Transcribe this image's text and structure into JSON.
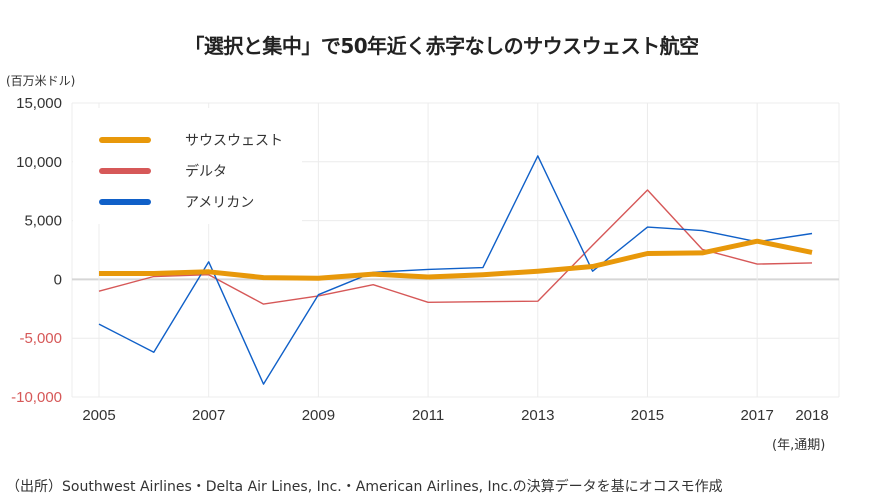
{
  "title": "「選択と集中」で50年近く赤字なしのサウスウェスト航空",
  "y_unit": "(百万米ドル)",
  "x_unit": "(年,通期)",
  "source": "（出所）Southwest Airlines・Delta Air Lines, Inc.・American Airlines, Inc.の決算データを基にオコスモ作成",
  "chart_data": {
    "type": "line",
    "title": "「選択と集中」で50年近く赤字なしのサウスウェスト航空",
    "xlabel": "(年,通期)",
    "ylabel": "(百万米ドル)",
    "x": [
      2005,
      2006,
      2007,
      2008,
      2009,
      2010,
      2011,
      2012,
      2013,
      2014,
      2015,
      2016,
      2017,
      2018
    ],
    "xlim": [
      2005,
      2018
    ],
    "ylim": [
      -10000,
      15000
    ],
    "x_tick_labels": [
      "2005",
      "2007",
      "2009",
      "2011",
      "2013",
      "2015",
      "2017",
      "2018"
    ],
    "x_tick_values": [
      2005,
      2007,
      2009,
      2011,
      2013,
      2015,
      2017,
      2018
    ],
    "y_tick_labels": [
      "15,000",
      "10,000",
      "5,000",
      "0",
      "-5,000",
      "-10,000"
    ],
    "y_tick_values": [
      15000,
      10000,
      5000,
      0,
      -5000,
      -10000
    ],
    "negative_tick_color": "#D65858",
    "grid": true,
    "legend_position": "top-left",
    "series": [
      {
        "name": "サウスウェスト",
        "color": "#E8980A",
        "emphasis": true,
        "values": [
          500,
          500,
          650,
          150,
          100,
          450,
          200,
          400,
          700,
          1100,
          2200,
          2250,
          3250,
          2300
        ]
      },
      {
        "name": "デルタ",
        "color": "#D65858",
        "emphasis": false,
        "values": [
          -1000,
          250,
          400,
          -2100,
          -1400,
          -450,
          -1950,
          -1900,
          -1850,
          2900,
          7600,
          2550,
          1300,
          1400
        ]
      },
      {
        "name": "アメリカン",
        "color": "#1060C8",
        "emphasis": false,
        "values": [
          -3800,
          -6200,
          1500,
          -8900,
          -1300,
          600,
          850,
          1000,
          10500,
          700,
          4450,
          4150,
          3200,
          3900
        ]
      }
    ]
  }
}
